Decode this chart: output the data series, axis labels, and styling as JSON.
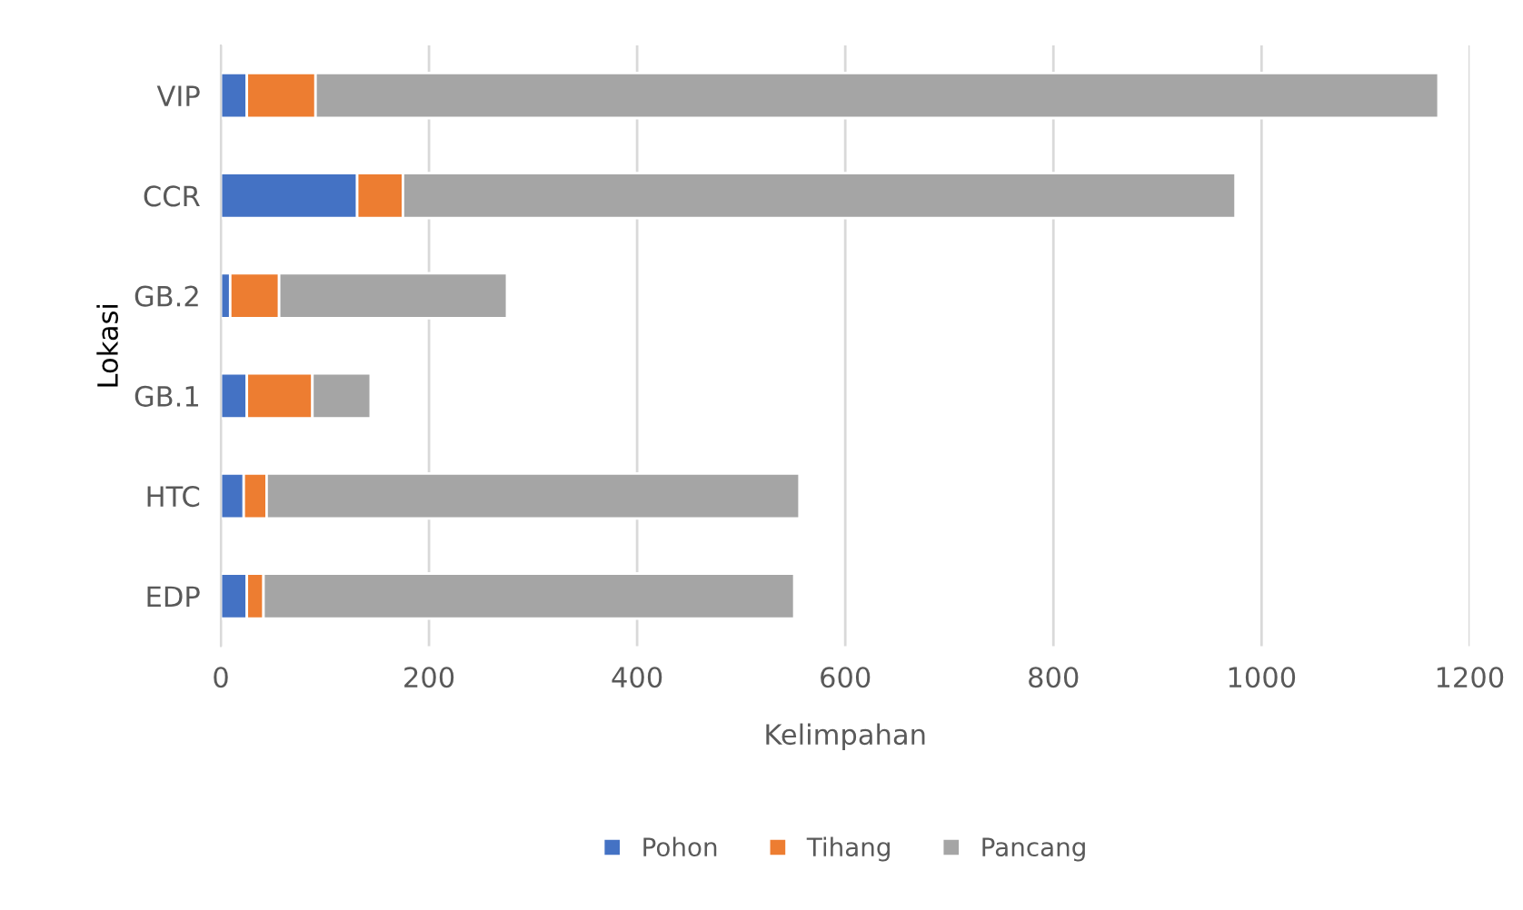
{
  "chart_data": {
    "type": "bar",
    "orientation": "horizontal",
    "stacked": true,
    "xlabel": "Kelimpahan",
    "ylabel": "Lokasi",
    "categories": [
      "VIP",
      "CCR",
      "GB.2",
      "GB.1",
      "HTC",
      "EDP"
    ],
    "series": [
      {
        "name": "Pohon",
        "color": "#4472c4",
        "values": [
          25,
          131,
          9,
          25,
          22,
          25
        ]
      },
      {
        "name": "Tihang",
        "color": "#ed7d31",
        "values": [
          66,
          44,
          47,
          63,
          22,
          16
        ]
      },
      {
        "name": "Pancang",
        "color": "#a5a5a5",
        "values": [
          1079,
          800,
          219,
          56,
          512,
          510
        ]
      }
    ],
    "xlim": [
      0,
      1200
    ],
    "xticks": [
      0,
      200,
      400,
      600,
      800,
      1000,
      1200
    ],
    "grid": "x",
    "legend": "bottom"
  }
}
